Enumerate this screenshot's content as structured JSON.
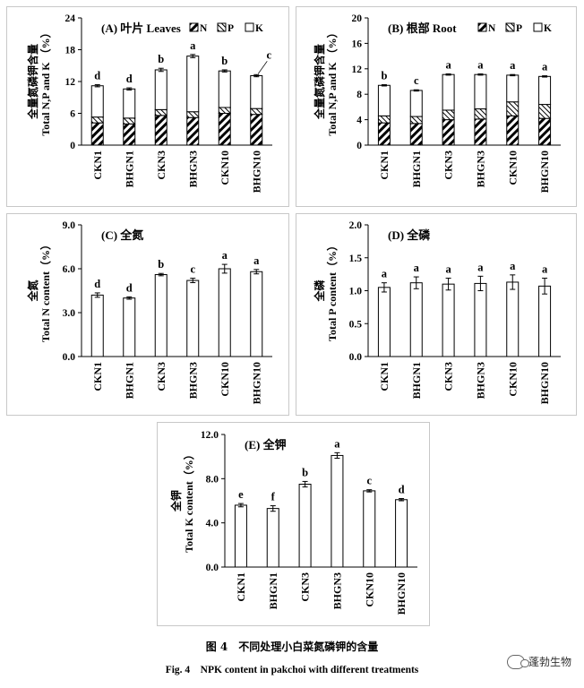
{
  "figure": {
    "caption_cn": "图 4　不同处理小白菜氮磷钾的含量",
    "caption_en": "Fig. 4　NPK content in pakchoi with different treatments",
    "watermark": "蓬勃生物"
  },
  "chart_data": [
    {
      "id": "A",
      "type": "bar",
      "stacked": true,
      "title": "(A) 叶片 Leaves",
      "ylabel_cn": "全量氮磷钾含量",
      "ylabel_en": "Total N,P and K （%）",
      "categories": [
        "CKN1",
        "BHGN1",
        "CKN3",
        "BHGN3",
        "CKN10",
        "BHGN10"
      ],
      "series": [
        {
          "name": "N",
          "values": [
            4.2,
            4.0,
            5.6,
            5.2,
            6.0,
            5.8
          ]
        },
        {
          "name": "P",
          "values": [
            1.1,
            1.1,
            1.1,
            1.1,
            1.1,
            1.1
          ]
        },
        {
          "name": "K",
          "values": [
            5.9,
            5.5,
            7.5,
            10.5,
            6.9,
            6.2
          ]
        }
      ],
      "error": [
        0.2,
        0.2,
        0.3,
        0.3,
        0.2,
        0.2
      ],
      "letters": [
        "d",
        "d",
        "b",
        "a",
        "b",
        "c"
      ],
      "ylim": [
        0,
        24
      ],
      "yticks": [
        "0",
        "6",
        "12",
        "18",
        "24"
      ],
      "legend_position": "top-right",
      "colors": {
        "bar": "#ffffff",
        "edge": "#000000"
      }
    },
    {
      "id": "B",
      "type": "bar",
      "stacked": true,
      "title": "(B) 根部 Root",
      "ylabel_cn": "全量氮磷钾含量",
      "ylabel_en": "Total N,P and K （%）",
      "categories": [
        "CKN1",
        "BHGN1",
        "CKN3",
        "BHGN3",
        "CKN10",
        "BHGN10"
      ],
      "series": [
        {
          "name": "N",
          "values": [
            3.5,
            3.4,
            4.0,
            4.1,
            4.6,
            4.2
          ]
        },
        {
          "name": "P",
          "values": [
            1.1,
            1.1,
            1.5,
            1.6,
            2.2,
            2.2
          ]
        },
        {
          "name": "K",
          "values": [
            4.8,
            4.1,
            5.6,
            5.4,
            4.2,
            4.4
          ]
        }
      ],
      "error": [
        0.1,
        0.1,
        0.1,
        0.1,
        0.1,
        0.1
      ],
      "letters": [
        "b",
        "c",
        "a",
        "a",
        "a",
        "a"
      ],
      "ylim": [
        0,
        20
      ],
      "yticks": [
        "0",
        "4",
        "8",
        "12",
        "16",
        "20"
      ],
      "legend_position": "top-right",
      "colors": {
        "bar": "#ffffff",
        "edge": "#000000"
      }
    },
    {
      "id": "C",
      "type": "bar",
      "title": "(C) 全氮",
      "ylabel_cn": "全氮",
      "ylabel_en": "Total N content（%）",
      "categories": [
        "CKN1",
        "BHGN1",
        "CKN3",
        "BHGN3",
        "CKN10",
        "BHGN10"
      ],
      "values": [
        4.2,
        4.0,
        5.6,
        5.2,
        6.0,
        5.8
      ],
      "error": [
        0.15,
        0.08,
        0.08,
        0.15,
        0.3,
        0.15
      ],
      "letters": [
        "d",
        "d",
        "b",
        "c",
        "a",
        "a"
      ],
      "ylim": [
        0,
        9
      ],
      "yticks": [
        "0.0",
        "3.0",
        "6.0",
        "9.0"
      ],
      "colors": {
        "bar": "#ffffff",
        "edge": "#000000"
      }
    },
    {
      "id": "D",
      "type": "bar",
      "title": "(D) 全磷",
      "ylabel_cn": "全磷",
      "ylabel_en": "Total P content（%）",
      "categories": [
        "CKN1",
        "BHGN1",
        "CKN3",
        "BHGN3",
        "CKN10",
        "BHGN10"
      ],
      "values": [
        1.05,
        1.12,
        1.1,
        1.11,
        1.13,
        1.07
      ],
      "error": [
        0.07,
        0.09,
        0.09,
        0.11,
        0.11,
        0.12
      ],
      "letters": [
        "a",
        "a",
        "a",
        "a",
        "a",
        "a"
      ],
      "ylim": [
        0,
        2
      ],
      "yticks": [
        "0.0",
        "0.5",
        "1.0",
        "1.5",
        "2.0"
      ],
      "colors": {
        "bar": "#ffffff",
        "edge": "#000000"
      }
    },
    {
      "id": "E",
      "type": "bar",
      "title": "(E) 全钾",
      "ylabel_cn": "全钾",
      "ylabel_en": "Total K content（%）",
      "categories": [
        "CKN1",
        "BHGN1",
        "CKN3",
        "BHGN3",
        "CKN10",
        "BHGN10"
      ],
      "values": [
        5.6,
        5.3,
        7.5,
        10.1,
        6.9,
        6.1
      ],
      "error": [
        0.15,
        0.25,
        0.25,
        0.25,
        0.1,
        0.1
      ],
      "letters": [
        "e",
        "f",
        "b",
        "a",
        "c",
        "d"
      ],
      "ylim": [
        0,
        12
      ],
      "yticks": [
        "0.0",
        "4.0",
        "8.0",
        "12.0"
      ],
      "colors": {
        "bar": "#ffffff",
        "edge": "#000000"
      }
    }
  ]
}
